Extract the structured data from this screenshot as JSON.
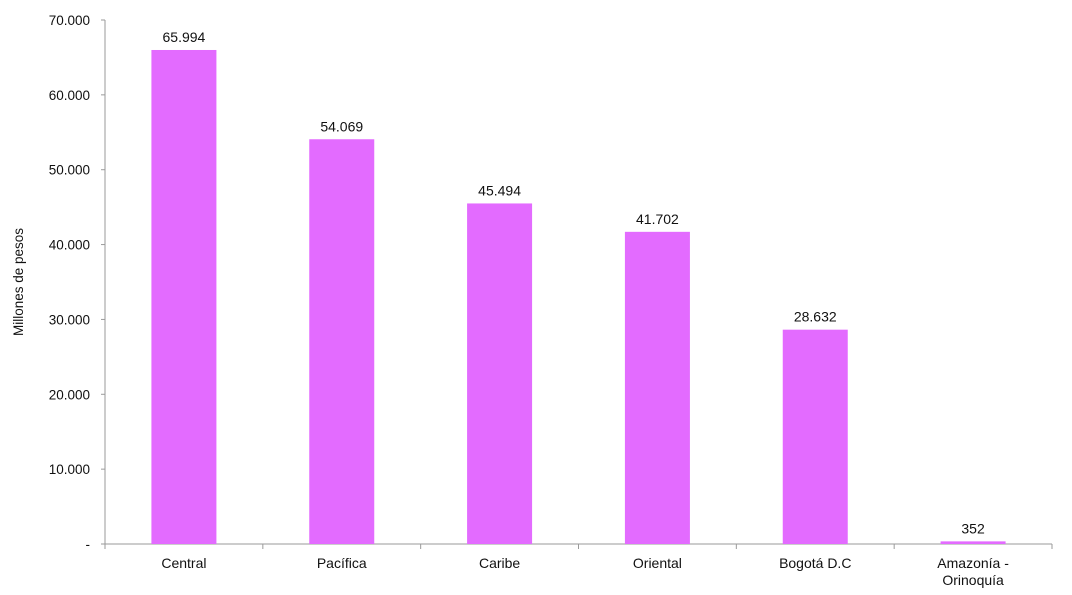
{
  "chart_data": {
    "type": "bar",
    "title": "",
    "xlabel": "",
    "ylabel": "Millones de pesos",
    "categories": [
      "Central",
      "Pacífica",
      "Caribe",
      "Oriental",
      "Bogotá D.C",
      "Amazonía - Orinoquía"
    ],
    "category_lines": [
      [
        "Central"
      ],
      [
        "Pacífica"
      ],
      [
        "Caribe"
      ],
      [
        "Oriental"
      ],
      [
        "Bogotá D.C"
      ],
      [
        "Amazonía -",
        "Orinoquía"
      ]
    ],
    "values": [
      65994,
      54069,
      45494,
      41702,
      28632,
      352
    ],
    "value_labels": [
      "65.994",
      "54.069",
      "45.494",
      "41.702",
      "28.632",
      "352"
    ],
    "ylim": [
      0,
      70000
    ],
    "yticks": [
      0,
      10000,
      20000,
      30000,
      40000,
      50000,
      60000,
      70000
    ],
    "ytick_labels": [
      "-",
      "10.000",
      "20.000",
      "30.000",
      "40.000",
      "50.000",
      "60.000",
      "70.000"
    ],
    "bar_color": "#E36BFF",
    "grid": false,
    "legend": "none"
  }
}
